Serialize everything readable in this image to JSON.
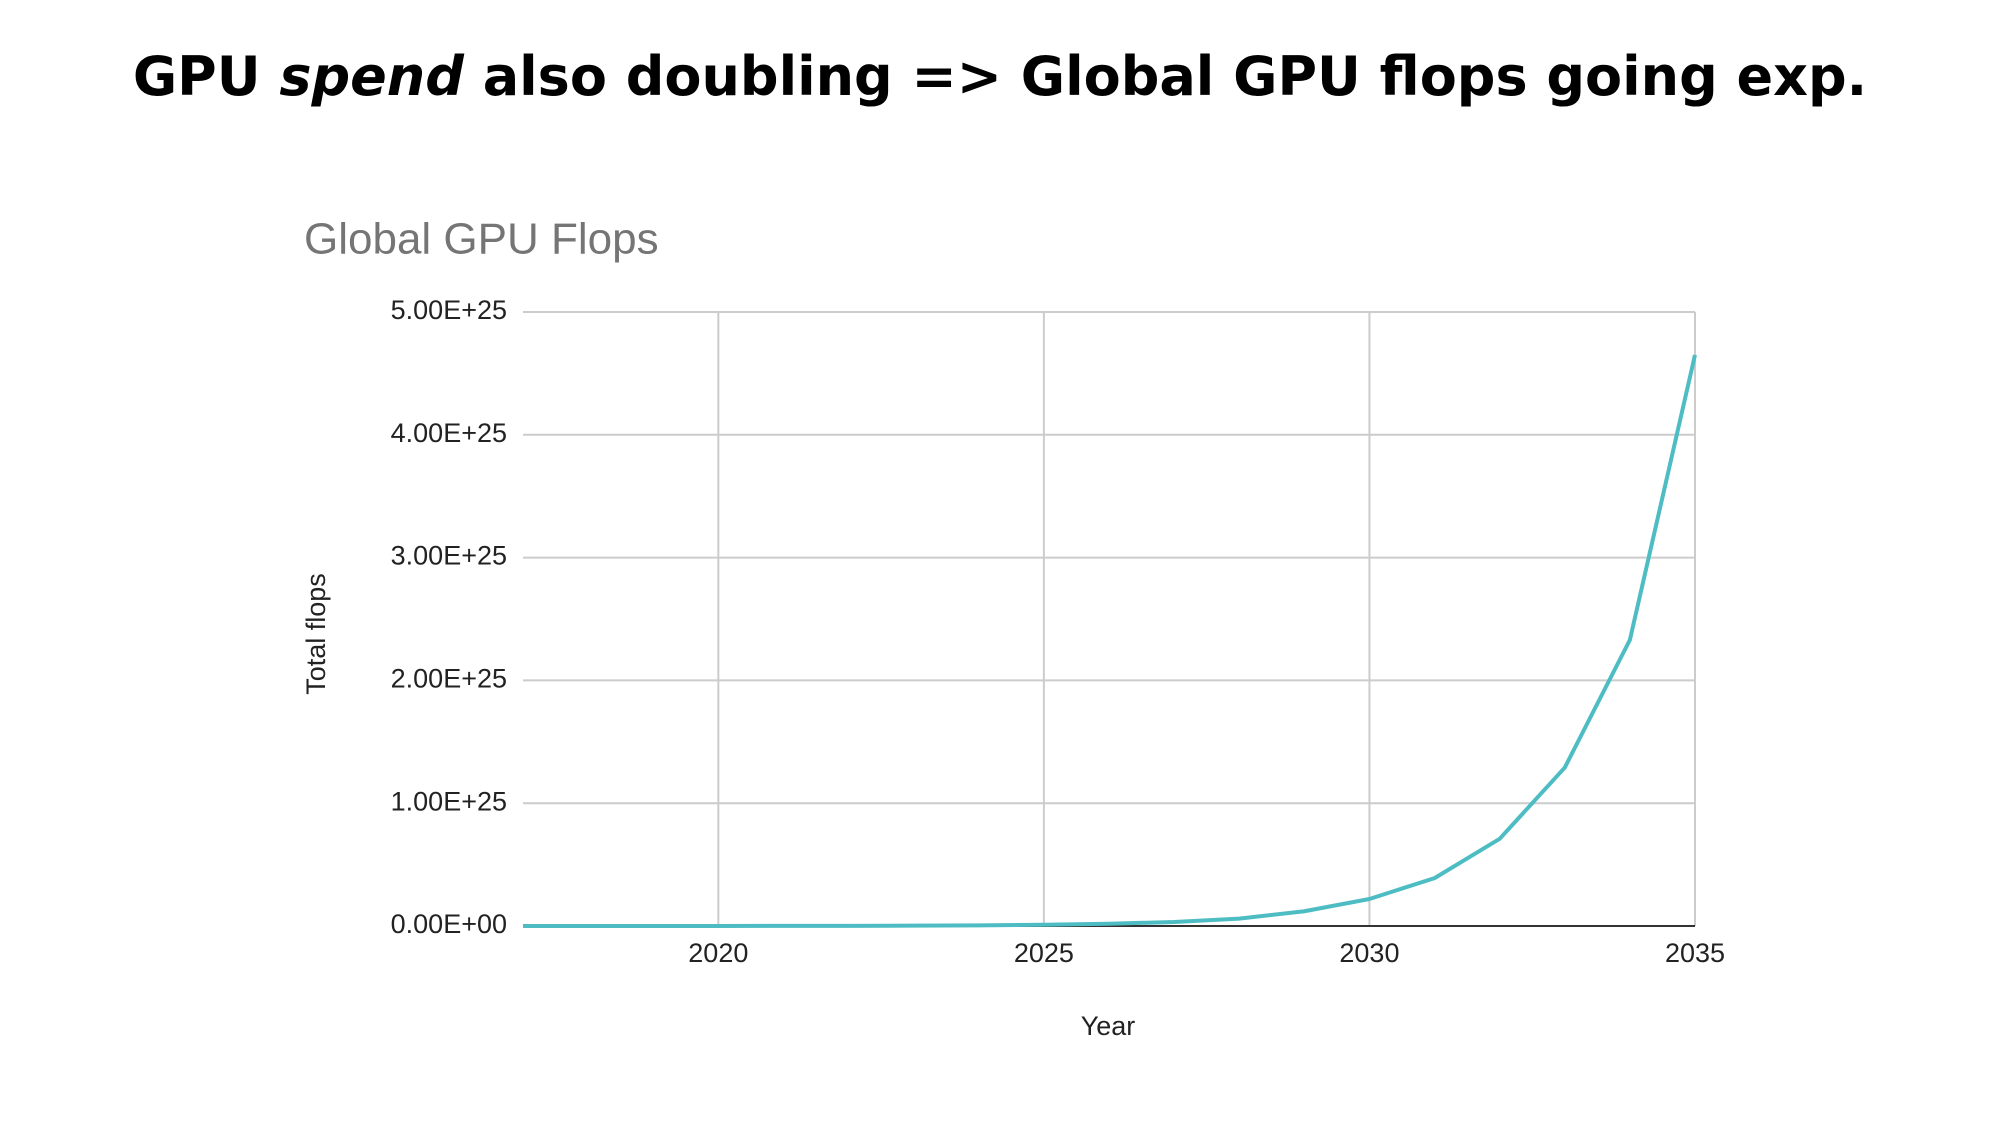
{
  "slide_title": {
    "before": "GPU",
    "emphasis": "spend",
    "after": "also doubling => Global GPU flops going exp."
  },
  "chart_data": {
    "type": "line",
    "title": "Global GPU Flops",
    "x_label": "Year",
    "y_label": "Total flops",
    "x": [
      2017,
      2018,
      2019,
      2020,
      2021,
      2022,
      2023,
      2024,
      2025,
      2026,
      2027,
      2028,
      2029,
      2030,
      2031,
      2032,
      2033,
      2034,
      2035
    ],
    "values": [
      5e+20,
      1e+21,
      2e+21,
      4e+21,
      8e+21,
      1.5e+22,
      3e+22,
      5e+22,
      1e+23,
      1.8e+23,
      3.3e+23,
      6e+23,
      1.2e+24,
      2.2e+24,
      3.9e+24,
      7.1e+24,
      1.29e+25,
      2.33e+25,
      4.65e+25
    ],
    "color": "#4dbdc3",
    "xlim": [
      2017,
      2035
    ],
    "xticks": [
      2020,
      2025,
      2030,
      2035
    ],
    "ylim": [
      0,
      5e+25
    ],
    "yticks": [
      {
        "value": 0,
        "label": "0.00E+00"
      },
      {
        "value": 1e+25,
        "label": "1.00E+25"
      },
      {
        "value": 2e+25,
        "label": "2.00E+25"
      },
      {
        "value": 3e+25,
        "label": "3.00E+25"
      },
      {
        "value": 4e+25,
        "label": "4.00E+25"
      },
      {
        "value": 5e+25,
        "label": "5.00E+25"
      }
    ],
    "grid": true
  }
}
